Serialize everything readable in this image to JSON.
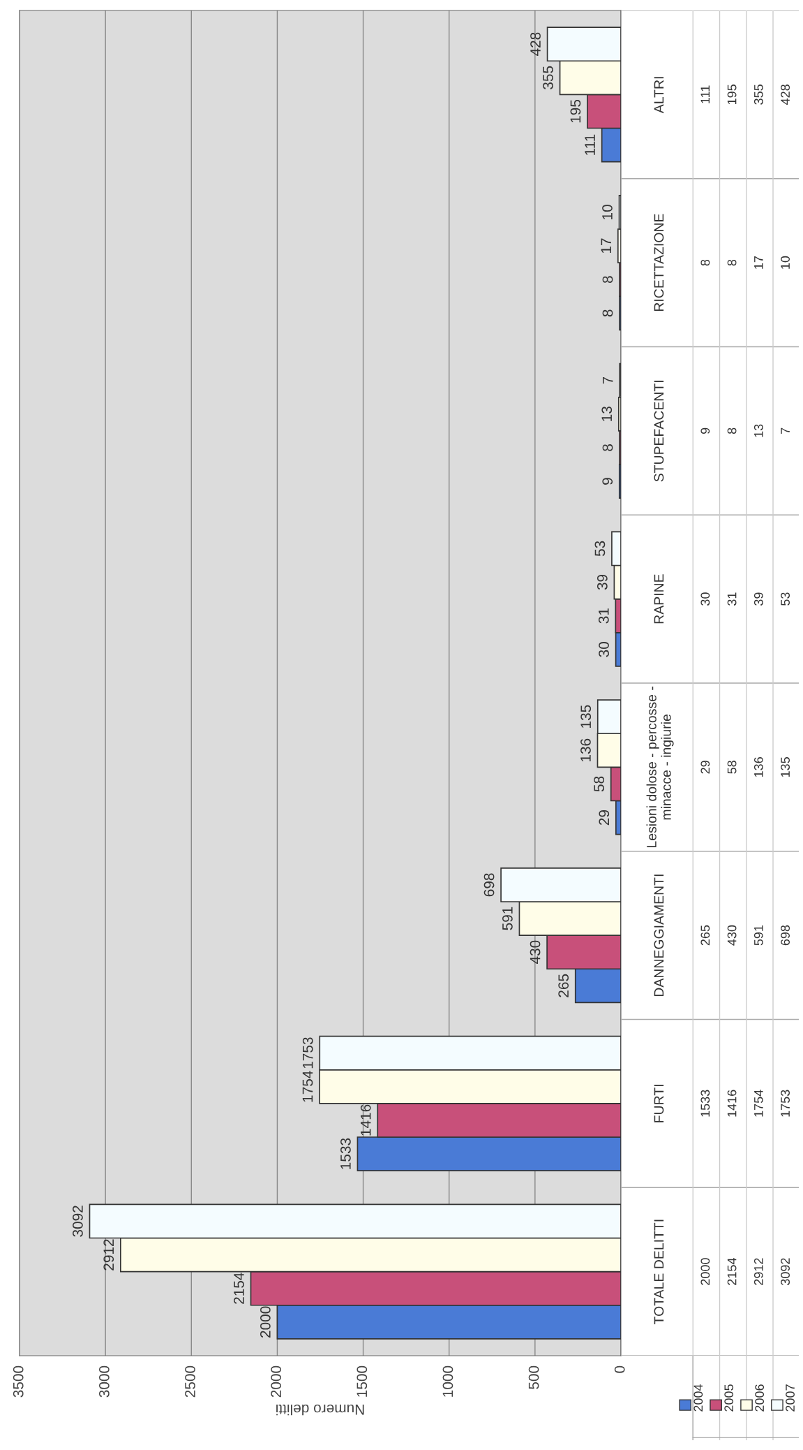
{
  "chart_data": {
    "type": "bar",
    "orientation": "horizontal",
    "xlabel": "Numero delitti",
    "categories": [
      "ALTRI",
      "RICETTAZIONE",
      "STUPEFACENTI",
      "RAPINE",
      "Lesioni dolose - percosse - minacce - ingiurie",
      "DANNEGGIAMENTI",
      "FURTI",
      "TOTALE DELITTI"
    ],
    "series": [
      {
        "name": "2004",
        "color": "#4a7bd6",
        "values": [
          111,
          8,
          9,
          30,
          29,
          265,
          1533,
          2000
        ]
      },
      {
        "name": "2005",
        "color": "#c8507a",
        "values": [
          195,
          8,
          8,
          31,
          58,
          430,
          1416,
          2154
        ]
      },
      {
        "name": "2006",
        "color": "#fffde8",
        "values": [
          355,
          17,
          13,
          39,
          136,
          591,
          1754,
          2912
        ]
      },
      {
        "name": "2007",
        "color": "#f4fcff",
        "values": [
          428,
          10,
          7,
          53,
          135,
          698,
          1753,
          3092
        ]
      }
    ],
    "xlim": [
      3500,
      0
    ],
    "xticks": [
      0,
      500,
      1000,
      1500,
      2000,
      2500,
      3000,
      3500
    ],
    "grid": "x",
    "legend": "bottom right",
    "data_labels": true,
    "annotations": [
      "111",
      "195",
      "355",
      "428",
      "8",
      "8",
      "17",
      "10",
      "9",
      "8",
      "13",
      "7",
      "30",
      "31",
      "39",
      "53",
      "29",
      "58",
      "136",
      "135",
      "265",
      "430",
      "591",
      "698",
      "1533",
      "1416",
      "1754",
      "1753",
      "2000",
      "2154",
      "2912",
      "3092"
    ]
  }
}
